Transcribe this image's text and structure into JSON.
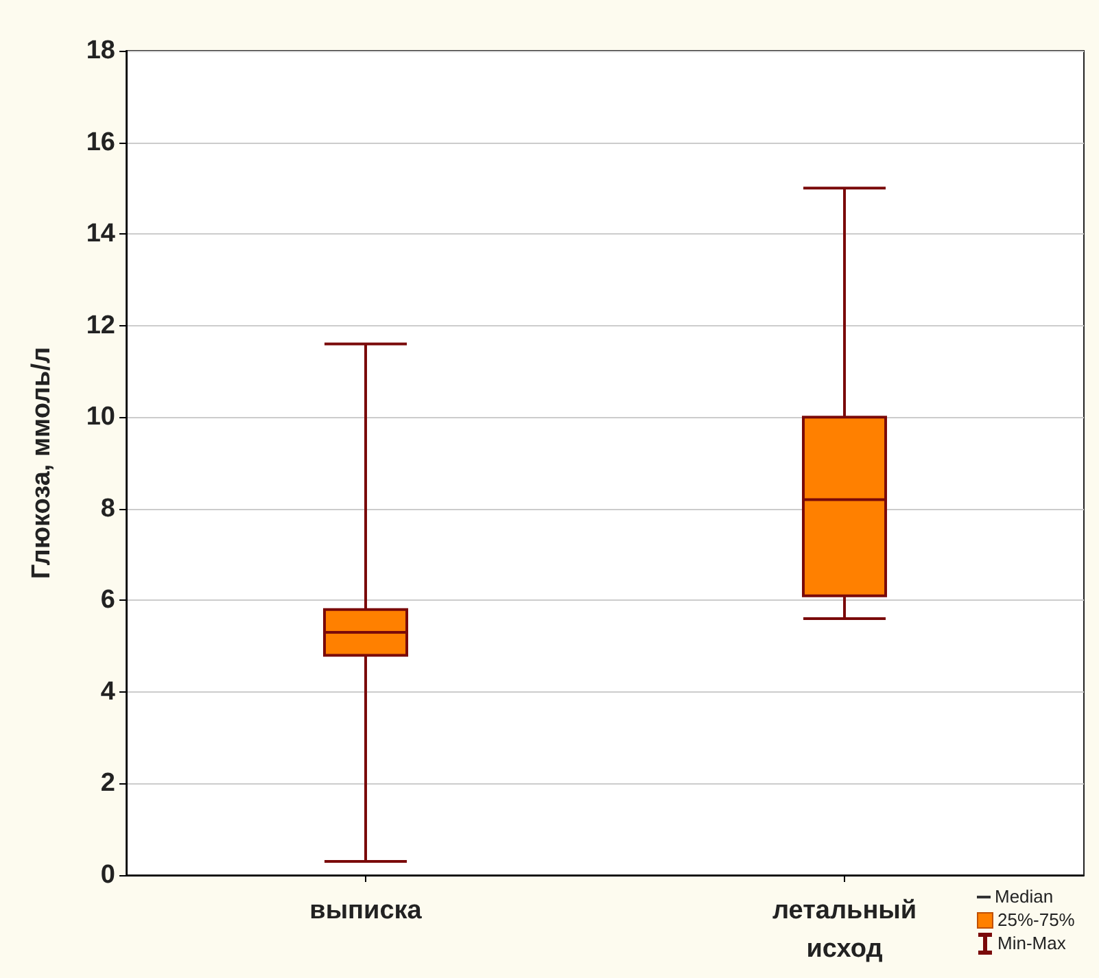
{
  "chart_data": {
    "type": "box",
    "ylabel": "Глюкоза, ммоль/л",
    "categories": [
      "выписка",
      "летальный исход"
    ],
    "boxes": [
      {
        "low": 0.3,
        "q1": 4.8,
        "median": 5.3,
        "q3": 5.8,
        "high": 11.6
      },
      {
        "low": 5.6,
        "q1": 6.1,
        "median": 8.2,
        "q3": 10.0,
        "high": 15.0
      }
    ],
    "color": "#ff8000",
    "ylim": [
      0,
      18
    ],
    "yticks": [
      0,
      2,
      4,
      6,
      8,
      10,
      12,
      14,
      16,
      18
    ],
    "grid": "y",
    "annotations": [
      "Median",
      "25%-75%",
      "Min-Max"
    ]
  }
}
